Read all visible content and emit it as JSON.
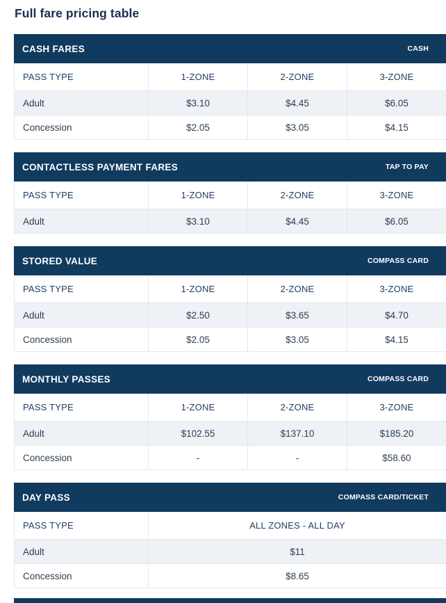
{
  "page": {
    "title": "Full fare pricing table"
  },
  "colors": {
    "navy_header": "#113A5F",
    "alt_row_background": "#EEF1F5",
    "row_border": "#E4E8ED",
    "body_text": "#2D3E50",
    "column_header_text": "#1F3C5F",
    "title_text": "#1C2C51"
  },
  "tables": [
    {
      "id": "cash-fares",
      "title": "CASH FARES",
      "badge": "CASH",
      "columns": [
        "PASS TYPE",
        "1-ZONE",
        "2-ZONE",
        "3-ZONE"
      ],
      "rows": [
        {
          "label": "Adult",
          "values": [
            "$3.10",
            "$4.45",
            "$6.05"
          ]
        },
        {
          "label": "Concession",
          "values": [
            "$2.05",
            "$3.05",
            "$4.15"
          ]
        }
      ]
    },
    {
      "id": "contactless-payment-fares",
      "title": "CONTACTLESS PAYMENT FARES",
      "badge": "TAP TO PAY",
      "columns": [
        "PASS TYPE",
        "1-ZONE",
        "2-ZONE",
        "3-ZONE"
      ],
      "rows": [
        {
          "label": "Adult",
          "values": [
            "$3.10",
            "$4.45",
            "$6.05"
          ]
        }
      ]
    },
    {
      "id": "stored-value",
      "title": "STORED VALUE",
      "badge": "COMPASS CARD",
      "columns": [
        "PASS TYPE",
        "1-ZONE",
        "2-ZONE",
        "3-ZONE"
      ],
      "rows": [
        {
          "label": "Adult",
          "values": [
            "$2.50",
            "$3.65",
            "$4.70"
          ]
        },
        {
          "label": "Concession",
          "values": [
            "$2.05",
            "$3.05",
            "$4.15"
          ]
        }
      ]
    },
    {
      "id": "monthly-passes",
      "title": "MONTHLY PASSES",
      "badge": "COMPASS CARD",
      "columns": [
        "PASS TYPE",
        "1-ZONE",
        "2-ZONE",
        "3-ZONE"
      ],
      "rows": [
        {
          "label": "Adult",
          "values": [
            "$102.55",
            "$137.10",
            "$185.20"
          ]
        },
        {
          "label": "Concession",
          "values": [
            "-",
            "-",
            "$58.60"
          ]
        }
      ]
    },
    {
      "id": "day-pass",
      "title": "DAY PASS",
      "badge": "COMPASS CARD/TICKET",
      "columns": [
        "PASS TYPE",
        "ALL ZONES - ALL DAY"
      ],
      "rows": [
        {
          "label": "Adult",
          "values": [
            "$11"
          ]
        },
        {
          "label": "Concession",
          "values": [
            "$8.65"
          ]
        }
      ]
    }
  ]
}
